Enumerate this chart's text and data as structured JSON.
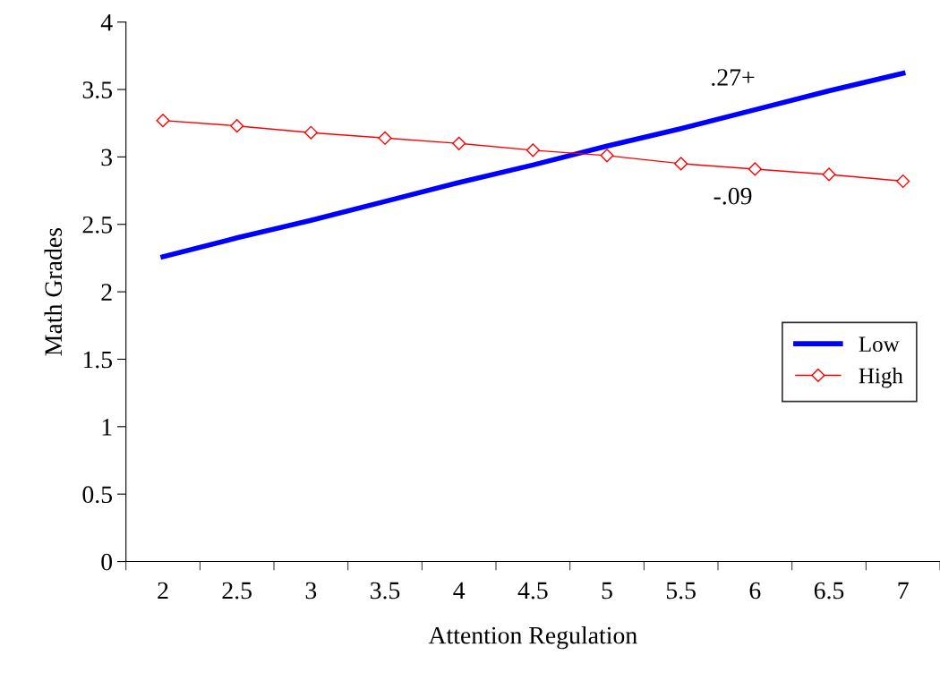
{
  "chart_data": {
    "type": "line",
    "xlabel": "Attention Regulation",
    "ylabel": "Math Grades",
    "categories": [
      "2",
      "2.5",
      "3",
      "3.5",
      "4",
      "4.5",
      "5",
      "5.5",
      "6",
      "6.5",
      "7"
    ],
    "series": [
      {
        "name": "Low",
        "color": "#0000ff",
        "marker": "none",
        "values": [
          2.26,
          2.4,
          2.53,
          2.67,
          2.81,
          2.94,
          3.08,
          3.21,
          3.35,
          3.49,
          3.62
        ]
      },
      {
        "name": "High",
        "color": "#ff0000",
        "marker": "diamond",
        "values": [
          3.27,
          3.23,
          3.18,
          3.14,
          3.1,
          3.05,
          3.01,
          2.95,
          2.91,
          2.87,
          2.82
        ]
      }
    ],
    "ylim": [
      0,
      4
    ],
    "yticks": [
      0,
      0.5,
      1,
      1.5,
      2,
      2.5,
      3,
      3.5,
      4
    ],
    "annotations": [
      ".27+",
      "-.09"
    ],
    "grid": false,
    "legend": "right"
  }
}
